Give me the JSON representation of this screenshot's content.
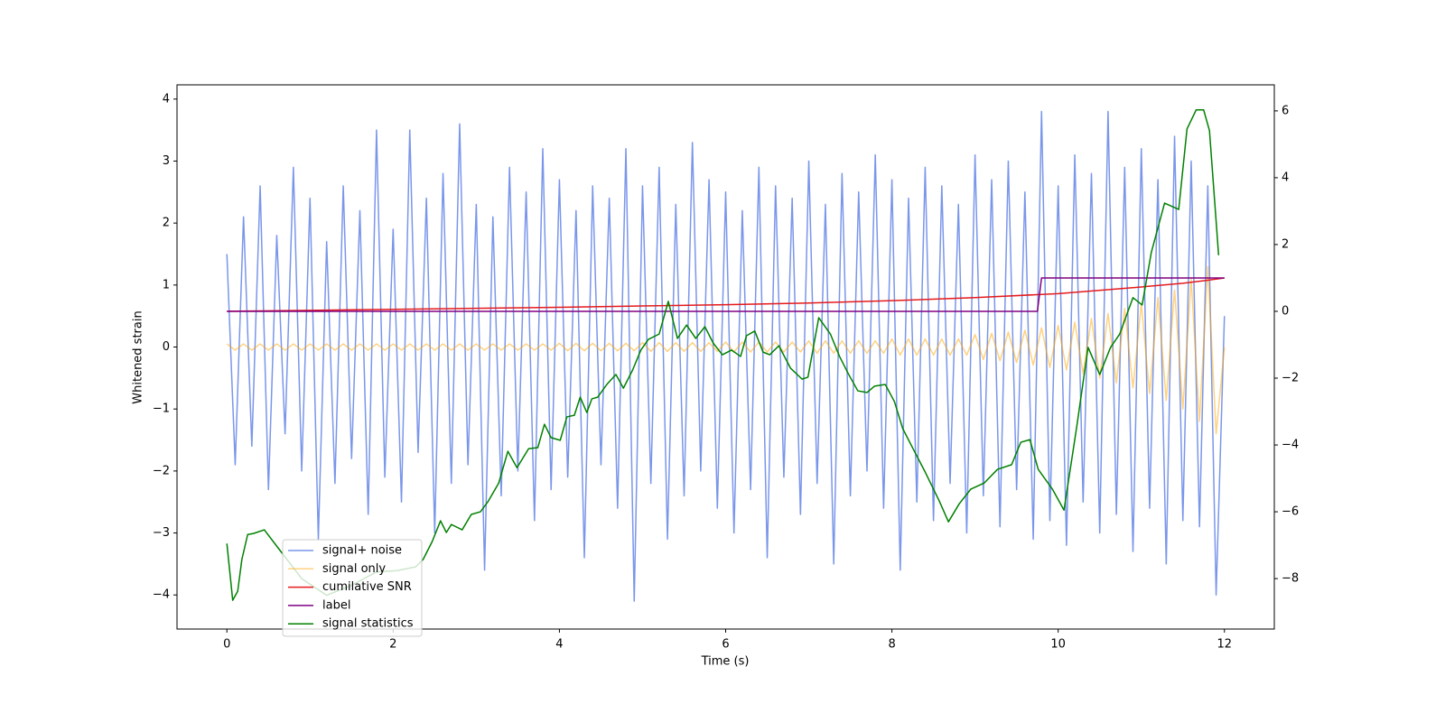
{
  "chart_data": {
    "type": "line",
    "xlabel": "Time (s)",
    "ylabel": "Whitened strain",
    "xlim": [
      -0.6,
      12.6
    ],
    "xticks": [
      0,
      2,
      4,
      6,
      8,
      10,
      12
    ],
    "ylim": [
      -4.55,
      4.23
    ],
    "yticks": [
      {
        "value": -4,
        "label": "−4"
      },
      {
        "value": -3,
        "label": "−3"
      },
      {
        "value": -2,
        "label": "−2"
      },
      {
        "value": -1,
        "label": "−1"
      },
      0,
      1,
      2,
      3,
      4
    ],
    "y2lim": [
      -9.51,
      6.78
    ],
    "y2ticks": [
      {
        "value": -8,
        "label": "−8"
      },
      {
        "value": -6,
        "label": "−6"
      },
      {
        "value": -4,
        "label": "−4"
      },
      {
        "value": -2,
        "label": "−2"
      },
      0,
      2,
      4,
      6
    ],
    "series": [
      {
        "name": "signal+ noise",
        "color": "#4169e1",
        "opacity": 0.7,
        "x": [
          0,
          0.1,
          0.2,
          0.3,
          0.4,
          0.5,
          0.6,
          0.7,
          0.8,
          0.9,
          1,
          1.1,
          1.2,
          1.3,
          1.4,
          1.5,
          1.6,
          1.7,
          1.8,
          1.9,
          2,
          2.1,
          2.2,
          2.3,
          2.4,
          2.5,
          2.6,
          2.7,
          2.8,
          2.9,
          3,
          3.1,
          3.2,
          3.3,
          3.4,
          3.5,
          3.6,
          3.7,
          3.8,
          3.9,
          4,
          4.1,
          4.2,
          4.3,
          4.4,
          4.5,
          4.6,
          4.7,
          4.8,
          4.9,
          5,
          5.1,
          5.2,
          5.3,
          5.4,
          5.5,
          5.6,
          5.7,
          5.8,
          5.9,
          6,
          6.1,
          6.2,
          6.3,
          6.4,
          6.5,
          6.6,
          6.7,
          6.8,
          6.9,
          7,
          7.1,
          7.2,
          7.3,
          7.4,
          7.5,
          7.6,
          7.7,
          7.8,
          7.9,
          8,
          8.1,
          8.2,
          8.3,
          8.4,
          8.5,
          8.6,
          8.7,
          8.8,
          8.9,
          9,
          9.1,
          9.2,
          9.3,
          9.4,
          9.5,
          9.6,
          9.7,
          9.8,
          9.9,
          10,
          10.1,
          10.2,
          10.3,
          10.4,
          10.5,
          10.6,
          10.7,
          10.8,
          10.9,
          11,
          11.1,
          11.2,
          11.3,
          11.4,
          11.5,
          11.6,
          11.7,
          11.8,
          11.9,
          12
        ],
        "values": [
          1.5,
          -1.9,
          2.1,
          -1.6,
          2.6,
          -2.3,
          1.8,
          -1.4,
          2.9,
          -2.0,
          2.4,
          -3.1,
          1.7,
          -2.2,
          2.6,
          -1.8,
          2.2,
          -2.7,
          3.5,
          -2.1,
          1.9,
          -2.5,
          3.5,
          -1.7,
          2.4,
          -3.0,
          2.8,
          -2.2,
          3.6,
          -1.9,
          2.3,
          -3.6,
          2.1,
          -2.4,
          2.9,
          -2.0,
          2.5,
          -2.8,
          3.2,
          -2.3,
          2.7,
          -2.1,
          2.2,
          -3.4,
          2.6,
          -1.9,
          2.4,
          -2.6,
          3.2,
          -4.1,
          2.6,
          -2.2,
          2.9,
          -3.1,
          2.3,
          -2.4,
          3.3,
          -2.0,
          2.7,
          -2.6,
          2.5,
          -3.0,
          2.2,
          -2.3,
          2.9,
          -3.4,
          2.6,
          -2.1,
          2.4,
          -2.7,
          3.0,
          -2.2,
          2.3,
          -3.5,
          2.8,
          -2.4,
          2.5,
          -2.0,
          3.1,
          -2.6,
          2.7,
          -3.6,
          2.4,
          -2.5,
          2.9,
          -2.8,
          2.6,
          -2.2,
          2.3,
          -3.0,
          3.1,
          -2.4,
          2.7,
          -2.9,
          3.0,
          -2.3,
          2.5,
          -3.1,
          3.8,
          -2.8,
          2.6,
          -3.2,
          3.1,
          -2.5,
          2.8,
          -3.0,
          3.8,
          -2.7,
          2.9,
          -3.3,
          3.2,
          -2.6,
          2.7,
          -3.5,
          3.4,
          -2.8,
          3.0,
          -2.9,
          2.6,
          -4.0,
          0.5
        ]
      },
      {
        "name": "signal only",
        "color": "#ffa500",
        "opacity": 0.5,
        "x": [
          0,
          0.1,
          0.2,
          0.3,
          0.4,
          0.5,
          0.6,
          0.7,
          0.8,
          0.9,
          1,
          1.1,
          1.2,
          1.3,
          1.4,
          1.5,
          1.6,
          1.7,
          1.8,
          1.9,
          2,
          2.1,
          2.2,
          2.3,
          2.4,
          2.5,
          2.6,
          2.7,
          2.8,
          2.9,
          3,
          3.1,
          3.2,
          3.3,
          3.4,
          3.5,
          3.6,
          3.7,
          3.8,
          3.9,
          4,
          4.1,
          4.2,
          4.3,
          4.4,
          4.5,
          4.6,
          4.7,
          4.8,
          4.9,
          5,
          5.1,
          5.2,
          5.3,
          5.4,
          5.5,
          5.6,
          5.7,
          5.8,
          5.9,
          6,
          6.1,
          6.2,
          6.3,
          6.4,
          6.5,
          6.6,
          6.7,
          6.8,
          6.9,
          7,
          7.1,
          7.2,
          7.3,
          7.4,
          7.5,
          7.6,
          7.7,
          7.8,
          7.9,
          8,
          8.1,
          8.2,
          8.3,
          8.4,
          8.5,
          8.6,
          8.7,
          8.8,
          8.9,
          9,
          9.1,
          9.2,
          9.3,
          9.4,
          9.5,
          9.6,
          9.7,
          9.8,
          9.9,
          10,
          10.1,
          10.2,
          10.3,
          10.4,
          10.5,
          10.6,
          10.7,
          10.8,
          10.9,
          11,
          11.1,
          11.2,
          11.3,
          11.4,
          11.5,
          11.6,
          11.7,
          11.8,
          11.9,
          12
        ],
        "values": [
          0.05,
          -0.05,
          0.05,
          -0.05,
          0.05,
          -0.05,
          0.05,
          -0.05,
          0.05,
          -0.05,
          0.05,
          -0.05,
          0.05,
          -0.05,
          0.05,
          -0.05,
          0.05,
          -0.05,
          0.05,
          -0.05,
          0.05,
          -0.05,
          0.05,
          -0.05,
          0.05,
          -0.05,
          0.05,
          -0.05,
          0.05,
          -0.05,
          0.05,
          -0.05,
          0.05,
          -0.05,
          0.05,
          -0.05,
          0.05,
          -0.05,
          0.05,
          -0.05,
          0.06,
          -0.06,
          0.06,
          -0.06,
          0.06,
          -0.06,
          0.06,
          -0.06,
          0.06,
          -0.06,
          0.07,
          -0.07,
          0.07,
          -0.07,
          0.07,
          -0.07,
          0.07,
          -0.07,
          0.07,
          -0.07,
          0.08,
          -0.08,
          0.08,
          -0.08,
          0.08,
          -0.08,
          0.08,
          -0.08,
          0.08,
          -0.08,
          0.1,
          -0.1,
          0.1,
          -0.1,
          0.1,
          -0.1,
          0.1,
          -0.1,
          0.1,
          -0.1,
          0.13,
          -0.13,
          0.13,
          -0.13,
          0.13,
          -0.13,
          0.13,
          -0.13,
          0.13,
          -0.13,
          0.2,
          -0.2,
          0.22,
          -0.22,
          0.24,
          -0.25,
          0.27,
          -0.29,
          0.31,
          -0.33,
          0.35,
          -0.37,
          0.4,
          -0.43,
          0.46,
          -0.5,
          0.54,
          -0.58,
          0.62,
          -0.66,
          0.7,
          -0.75,
          0.8,
          -0.86,
          0.92,
          -1.0,
          1.1,
          -1.2,
          1.3,
          -1.4,
          0
        ]
      },
      {
        "name": "cumilative SNR",
        "color": "#e41a1c",
        "axis": "y2",
        "x": [
          0,
          1,
          2,
          3,
          4,
          5,
          6,
          7,
          8,
          9,
          10,
          11,
          11.5,
          11.8,
          12
        ],
        "values": [
          0,
          0.03,
          0.06,
          0.09,
          0.12,
          0.16,
          0.2,
          0.25,
          0.32,
          0.41,
          0.53,
          0.73,
          0.84,
          0.93,
          1.0
        ]
      },
      {
        "name": "label",
        "color": "#800080",
        "axis": "y2",
        "x": [
          0,
          9.75,
          9.8,
          12
        ],
        "values": [
          0,
          0,
          1,
          1
        ]
      },
      {
        "name": "signal statistics",
        "color": "#008000",
        "axis": "y2",
        "x": [
          0,
          0.07,
          0.13,
          0.18,
          0.25,
          0.32,
          0.45,
          0.64,
          0.9,
          1.2,
          1.5,
          1.8,
          2.05,
          2.27,
          2.36,
          2.47,
          2.57,
          2.64,
          2.7,
          2.83,
          2.94,
          3.05,
          3.14,
          3.27,
          3.38,
          3.49,
          3.63,
          3.74,
          3.82,
          3.9,
          4.01,
          4.09,
          4.18,
          4.25,
          4.33,
          4.39,
          4.46,
          4.57,
          4.68,
          4.77,
          4.88,
          4.98,
          5.07,
          5.2,
          5.31,
          5.42,
          5.53,
          5.64,
          5.75,
          5.85,
          5.96,
          6.07,
          6.18,
          6.25,
          6.35,
          6.45,
          6.53,
          6.64,
          6.78,
          6.92,
          6.99,
          7.12,
          7.26,
          7.37,
          7.48,
          7.59,
          7.7,
          7.79,
          7.92,
          8.03,
          8.13,
          8.26,
          8.4,
          8.57,
          8.68,
          8.81,
          8.95,
          9.11,
          9.27,
          9.44,
          9.55,
          9.66,
          9.76,
          9.93,
          10.07,
          10.22,
          10.36,
          10.5,
          10.63,
          10.74,
          10.9,
          11.01,
          11.12,
          11.28,
          11.45,
          11.55,
          11.66,
          11.75,
          11.82,
          11.93
        ],
        "values": [
          -6.95,
          -8.65,
          -8.38,
          -7.43,
          -6.68,
          -6.65,
          -6.54,
          -7.16,
          -8.0,
          -8.5,
          -8.2,
          -7.8,
          -7.76,
          -7.65,
          -7.43,
          -6.89,
          -6.27,
          -6.62,
          -6.38,
          -6.54,
          -6.08,
          -6.0,
          -5.7,
          -5.14,
          -4.19,
          -4.68,
          -4.11,
          -4.08,
          -3.38,
          -3.78,
          -3.86,
          -3.16,
          -3.11,
          -2.57,
          -3.03,
          -2.62,
          -2.57,
          -2.19,
          -1.89,
          -2.3,
          -1.76,
          -1.16,
          -0.84,
          -0.68,
          0.3,
          -0.81,
          -0.41,
          -0.81,
          -0.46,
          -0.95,
          -1.3,
          -1.16,
          -1.35,
          -0.73,
          -0.59,
          -1.22,
          -1.3,
          -1.03,
          -1.7,
          -2.03,
          -1.97,
          -0.19,
          -0.68,
          -1.35,
          -1.89,
          -2.38,
          -2.43,
          -2.24,
          -2.19,
          -2.7,
          -3.51,
          -4.14,
          -4.81,
          -5.68,
          -6.3,
          -5.76,
          -5.32,
          -5.14,
          -4.73,
          -4.59,
          -3.92,
          -3.84,
          -4.73,
          -5.32,
          -5.95,
          -3.51,
          -1.08,
          -1.89,
          -1.08,
          -0.68,
          0.41,
          0.19,
          1.76,
          3.24,
          3.05,
          5.46,
          6.03,
          6.03,
          5.41,
          1.68
        ]
      }
    ]
  }
}
